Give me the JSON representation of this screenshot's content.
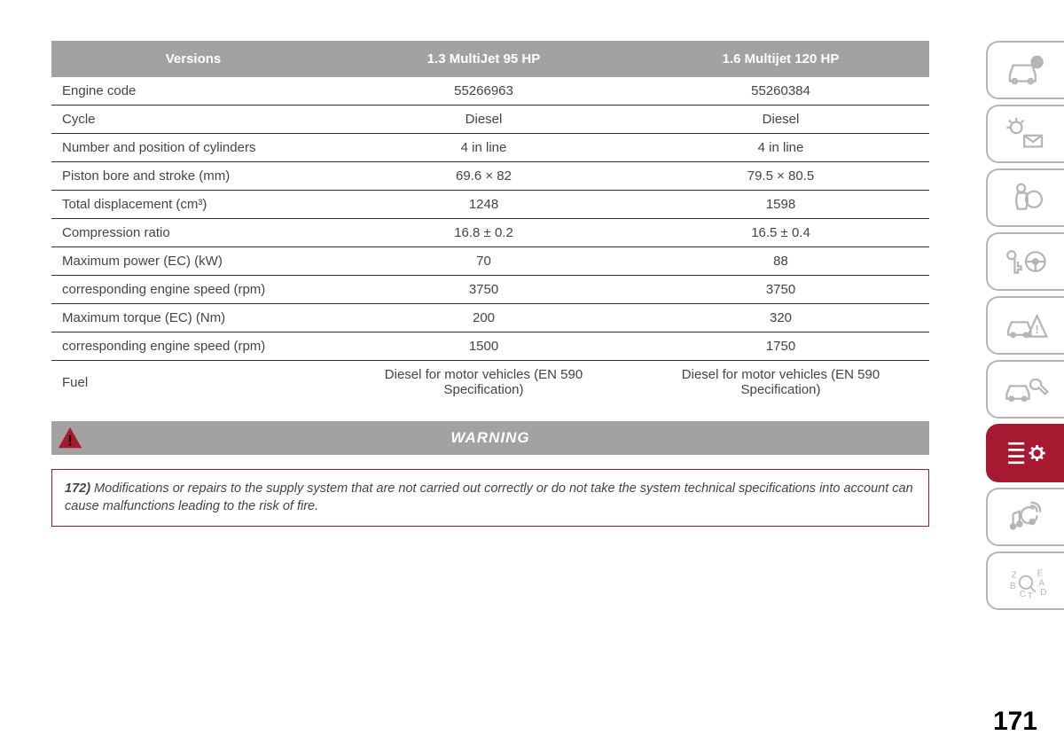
{
  "table": {
    "columns": [
      "Versions",
      "1.3 MultiJet 95 HP",
      "1.6 Multijet 120 HP"
    ],
    "rows": [
      [
        "Engine code",
        "55266963",
        "55260384"
      ],
      [
        "Cycle",
        "Diesel",
        "Diesel"
      ],
      [
        "Number and position of cylinders",
        "4 in line",
        "4 in line"
      ],
      [
        "Piston bore and stroke (mm)",
        "69.6 × 82",
        "79.5 × 80.5"
      ],
      [
        "Total displacement (cm³)",
        "1248",
        "1598"
      ],
      [
        "Compression ratio",
        "16.8 ± 0.2",
        "16.5 ± 0.4"
      ],
      [
        "Maximum power (EC) (kW)",
        "70",
        "88"
      ],
      [
        "corresponding engine speed (rpm)",
        "3750",
        "3750"
      ],
      [
        "Maximum torque (EC) (Nm)",
        "200",
        "320"
      ],
      [
        "corresponding engine speed (rpm)",
        "1500",
        "1750"
      ],
      [
        "Fuel",
        "Diesel for motor vehicles (EN 590 Specification)",
        "Diesel for motor vehicles (EN 590 Specification)"
      ]
    ],
    "header_bg": "#a2a2a2",
    "header_fg": "#ffffff",
    "row_border_color": "#333333",
    "text_color": "#444444",
    "font_size": 15
  },
  "warning": {
    "label": "WARNING",
    "triangle_fill": "#a71930",
    "triangle_mark": "!",
    "bar_bg": "#a2a2a2",
    "bar_fg": "#ffffff",
    "box_border": "#a71930",
    "item_number": "172)",
    "text": "Modifications or repairs to the supply system that are not carried out correctly or do not take the system technical specifications into account can cause malfunctions leading to the risk of fire."
  },
  "sidebar": {
    "inactive_color": "#b5b5b5",
    "active_bg": "#a71930",
    "active_fg": "#ffffff",
    "active_index": 6,
    "tabs": [
      {
        "name": "vehicle-info-icon"
      },
      {
        "name": "lights-messages-icon"
      },
      {
        "name": "airbag-icon"
      },
      {
        "name": "key-steering-icon"
      },
      {
        "name": "collision-icon"
      },
      {
        "name": "maintenance-icon"
      },
      {
        "name": "specs-settings-icon"
      },
      {
        "name": "multimedia-icon"
      },
      {
        "name": "index-icon"
      }
    ]
  },
  "page_number": "171",
  "colors": {
    "background": "#ffffff",
    "accent": "#a71930",
    "gray": "#a2a2a2"
  }
}
